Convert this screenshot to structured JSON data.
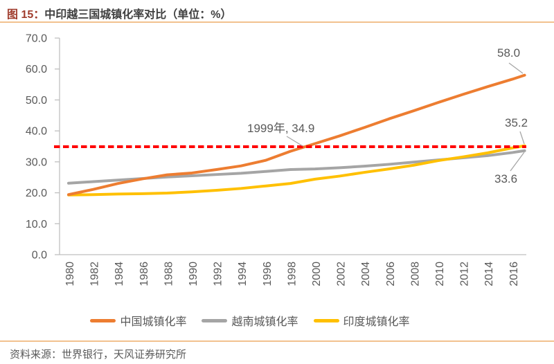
{
  "title": {
    "figure_label": "图 15：",
    "text": "中印越三国城镇化率对比（单位：%）"
  },
  "source_text": "资料来源：世界银行，天风证券研究所",
  "annotations": {
    "crossing_label": "1999年, 34.9",
    "china_end_value": "58.0",
    "india_end_value": "35.2",
    "vietnam_end_value": "33.6"
  },
  "legend": {
    "items": [
      {
        "label": "中国城镇化率",
        "color": "#ED7D31"
      },
      {
        "label": "越南城镇化率",
        "color": "#A5A5A5"
      },
      {
        "label": "印度城镇化率",
        "color": "#FFC000"
      }
    ]
  },
  "colors": {
    "accent_rule": "#F2C18E",
    "axis": "#BFBFBF",
    "tick_text": "#595959",
    "reference_red": "#FF0000",
    "leader_gray": "#A6A6A6",
    "title_label": "#A03C2D",
    "title_text": "#3F3F3F"
  },
  "chart_data": {
    "type": "line",
    "title": "中印越三国城镇化率对比（单位：%）",
    "x_years": [
      1980,
      1982,
      1984,
      1986,
      1988,
      1990,
      1992,
      1994,
      1996,
      1998,
      2000,
      2002,
      2004,
      2006,
      2008,
      2010,
      2012,
      2014,
      2016,
      2017
    ],
    "xtick_labels": [
      "1980",
      "1982",
      "1984",
      "1986",
      "1988",
      "1990",
      "1992",
      "1994",
      "1996",
      "1998",
      "2000",
      "2002",
      "2004",
      "2006",
      "2008",
      "2010",
      "2012",
      "2014",
      "2016"
    ],
    "ylim": [
      0,
      70
    ],
    "ytick_step": 10,
    "ytick_labels": [
      "0.0",
      "10.0",
      "20.0",
      "30.0",
      "40.0",
      "50.0",
      "60.0",
      "70.0"
    ],
    "grid": false,
    "legend_position": "bottom",
    "series": [
      {
        "name": "中国城镇化率",
        "color": "#ED7D31",
        "values": [
          19.4,
          21.1,
          23.0,
          24.5,
          25.8,
          26.4,
          27.5,
          28.7,
          30.5,
          33.4,
          35.9,
          38.4,
          41.1,
          43.9,
          46.5,
          49.2,
          51.8,
          54.3,
          56.7,
          58.0
        ]
      },
      {
        "name": "越南城镇化率",
        "color": "#A5A5A5",
        "values": [
          23.1,
          23.6,
          24.1,
          24.6,
          25.1,
          25.5,
          25.9,
          26.3,
          26.9,
          27.5,
          27.7,
          28.1,
          28.6,
          29.2,
          29.9,
          30.6,
          31.3,
          32.0,
          33.0,
          33.6
        ]
      },
      {
        "name": "印度城镇化率",
        "color": "#FFC000",
        "values": [
          19.3,
          19.4,
          19.6,
          19.7,
          19.9,
          20.3,
          20.8,
          21.4,
          22.2,
          23.0,
          24.4,
          25.4,
          26.6,
          27.7,
          28.9,
          30.4,
          31.6,
          32.9,
          34.5,
          35.2
        ]
      }
    ],
    "reference_line": {
      "value": 34.9,
      "label": "1999年, 34.9",
      "color": "#FF0000",
      "style": "dashed"
    },
    "end_labels": {
      "中国城镇化率": 58.0,
      "越南城镇化率": 33.6,
      "印度城镇化率": 35.2
    }
  }
}
